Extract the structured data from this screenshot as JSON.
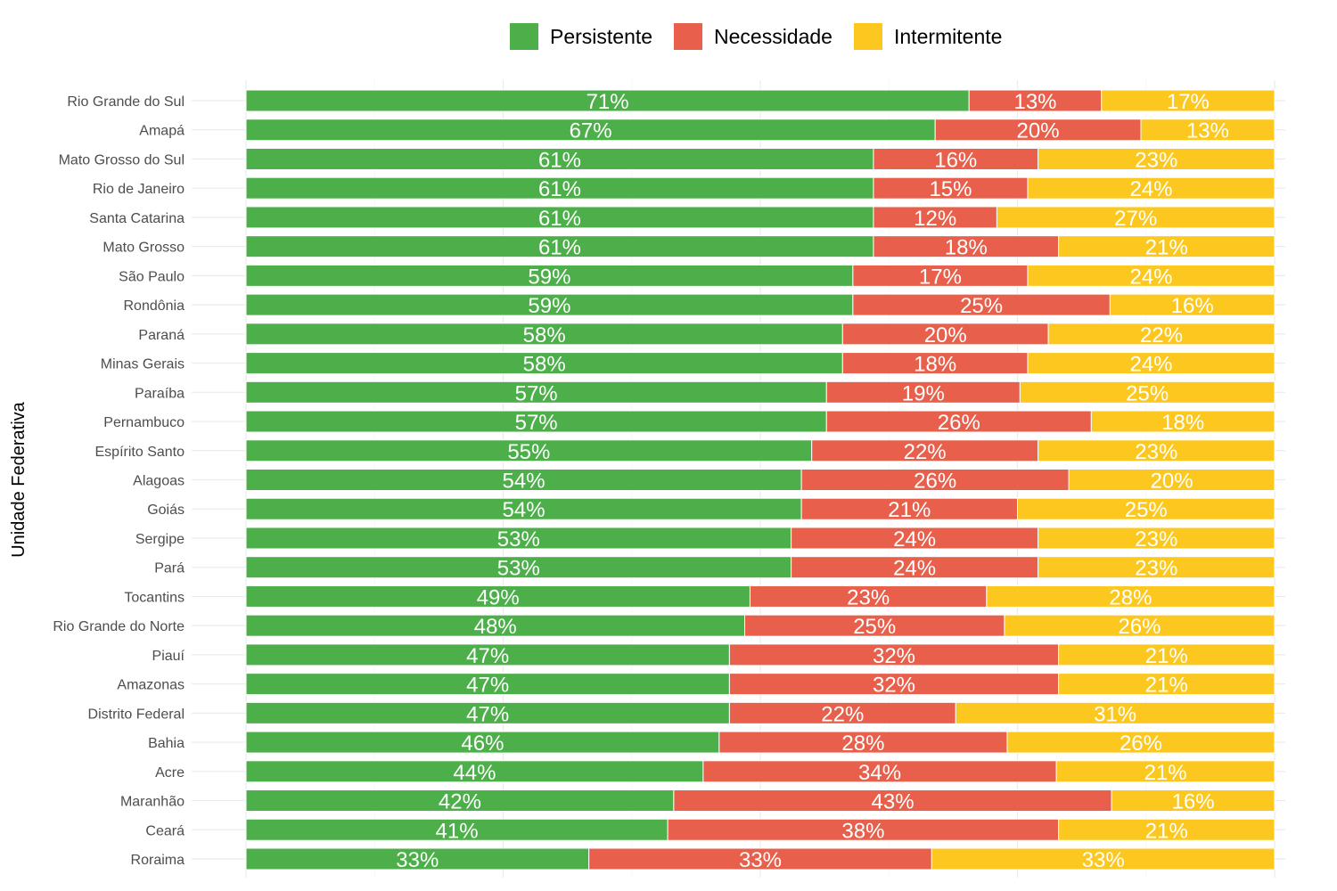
{
  "chart_data": {
    "type": "bar",
    "orientation": "horizontal",
    "stacked": true,
    "normalized": true,
    "title": "",
    "xlabel": "",
    "ylabel": "Unidade Federativa",
    "xlim": [
      0,
      100
    ],
    "grid": true,
    "legend_position": "top",
    "categories": [
      "Rio Grande do Sul",
      "Amapá",
      "Mato Grosso do Sul",
      "Rio de Janeiro",
      "Santa Catarina",
      "Mato Grosso",
      "São Paulo",
      "Rondônia",
      "Paraná",
      "Minas Gerais",
      "Paraíba",
      "Pernambuco",
      "Espírito Santo",
      "Alagoas",
      "Goiás",
      "Sergipe",
      "Pará",
      "Tocantins",
      "Rio Grande do Norte",
      "Piauí",
      "Amazonas",
      "Distrito Federal",
      "Bahia",
      "Acre",
      "Maranhão",
      "Ceará",
      "Roraima"
    ],
    "series": [
      {
        "name": "Persistente",
        "color": "#4daf4a",
        "values": [
          71,
          67,
          61,
          61,
          61,
          61,
          59,
          59,
          58,
          58,
          57,
          57,
          55,
          54,
          54,
          53,
          53,
          49,
          48,
          47,
          47,
          47,
          46,
          44,
          42,
          41,
          33
        ]
      },
      {
        "name": "Necessidade",
        "color": "#e8604c",
        "values": [
          13,
          20,
          16,
          15,
          12,
          18,
          17,
          25,
          20,
          18,
          19,
          26,
          22,
          26,
          21,
          24,
          24,
          23,
          25,
          32,
          32,
          22,
          28,
          34,
          43,
          38,
          33
        ]
      },
      {
        "name": "Intermitente",
        "color": "#fcc820",
        "values": [
          17,
          13,
          23,
          24,
          27,
          21,
          24,
          16,
          22,
          24,
          25,
          18,
          23,
          20,
          25,
          23,
          23,
          28,
          26,
          21,
          21,
          31,
          26,
          21,
          16,
          21,
          33
        ]
      }
    ]
  }
}
